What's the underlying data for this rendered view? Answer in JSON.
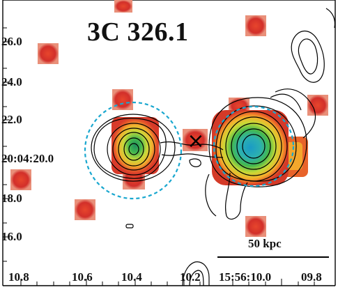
{
  "title": "3C 326.1",
  "y_ticks": [
    "26.0",
    "24.0",
    "22.0",
    "20:04:20.0",
    "18.0",
    "16.0"
  ],
  "x_ticks": [
    "10.8",
    "10.6",
    "10.4",
    "10.2",
    "15:56:10.0",
    "09.8"
  ],
  "scale_bar": {
    "label": "50 kpc"
  },
  "marker": {
    "symbol": "×"
  },
  "colors": {
    "circle": "#19a7cf",
    "contour": "#000000",
    "pixel_red": "#cf2a28",
    "pixel_orange": "#e8642a",
    "core_green": "#31b15a",
    "core_cyan": "#22b1c6"
  }
}
